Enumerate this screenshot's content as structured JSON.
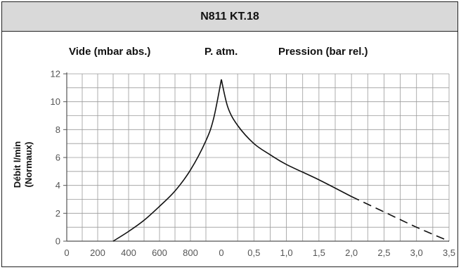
{
  "chart_data": {
    "type": "line",
    "title": "N811 KT.18",
    "header_labels": {
      "vacuum": "Vide (mbar abs.)",
      "atmosphere": "P. atm.",
      "pressure": "Pression (bar rel.)"
    },
    "ylabel_lines": [
      "Débit l/min",
      "(Normaux)"
    ],
    "ylim": [
      0,
      12
    ],
    "y_ticks": [
      "0",
      "2",
      "4",
      "6",
      "8",
      "10",
      "12"
    ],
    "vacuum_axis": {
      "unit": "mbar abs.",
      "xlim": [
        0,
        1000
      ],
      "ticks": [
        {
          "value": 0,
          "label": "0"
        },
        {
          "value": 200,
          "label": "200"
        },
        {
          "value": 400,
          "label": "400"
        },
        {
          "value": 600,
          "label": "600"
        },
        {
          "value": 800,
          "label": "800"
        }
      ]
    },
    "pressure_axis": {
      "unit": "bar rel.",
      "xlim": [
        0,
        3.5
      ],
      "ticks": [
        {
          "value": 0,
          "label": "0"
        },
        {
          "value": 0.5,
          "label": "0,5"
        },
        {
          "value": 1.0,
          "label": "1,0"
        },
        {
          "value": 1.5,
          "label": "1,5"
        },
        {
          "value": 2.0,
          "label": "2,0"
        },
        {
          "value": 2.5,
          "label": "2,5"
        },
        {
          "value": 3.0,
          "label": "3,0"
        },
        {
          "value": 3.5,
          "label": "3,5"
        }
      ]
    },
    "grid": true,
    "series": [
      {
        "segment": "vacuum",
        "style": "solid",
        "points": [
          [
            300,
            0
          ],
          [
            400,
            0.7
          ],
          [
            500,
            1.5
          ],
          [
            600,
            2.5
          ],
          [
            700,
            3.6
          ],
          [
            800,
            5.1
          ],
          [
            900,
            7.2
          ],
          [
            950,
            8.8
          ],
          [
            1000,
            11.6
          ]
        ]
      },
      {
        "segment": "pressure",
        "style": "solid",
        "points": [
          [
            0,
            11.6
          ],
          [
            0.1,
            9.6
          ],
          [
            0.25,
            8.3
          ],
          [
            0.5,
            7.0
          ],
          [
            0.75,
            6.2
          ],
          [
            1.0,
            5.5
          ],
          [
            1.5,
            4.4
          ],
          [
            2.0,
            3.2
          ]
        ]
      },
      {
        "segment": "pressure",
        "style": "dashed",
        "points": [
          [
            2.0,
            3.2
          ],
          [
            2.5,
            2.1
          ],
          [
            3.0,
            1.0
          ],
          [
            3.5,
            0.0
          ]
        ]
      }
    ]
  }
}
